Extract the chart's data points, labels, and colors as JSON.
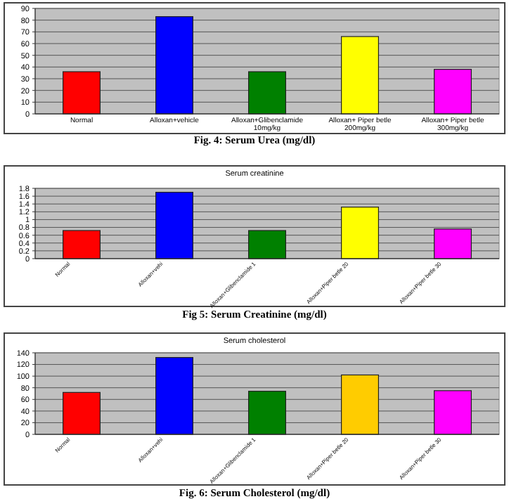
{
  "chart_data": [
    {
      "type": "bar",
      "categories": [
        "Normal",
        "Alloxan+vehicle",
        "Alloxan+Glibenclamide 10mg/kg",
        "Alloxan+ Piper betle 200mg/kg",
        "Alloxan+ Piper betle 300mg/kg"
      ],
      "values": [
        36,
        83,
        36,
        66,
        38
      ],
      "colors": [
        "#ff0000",
        "#0000ff",
        "#008000",
        "#ffff00",
        "#ff00ff"
      ],
      "ylim": [
        0,
        90
      ],
      "yticks": [
        0,
        10,
        20,
        30,
        40,
        50,
        60,
        70,
        80,
        90
      ],
      "grid": "y",
      "annotations": [
        "Fig. 4: Serum Urea (mg/dl)"
      ]
    },
    {
      "type": "bar",
      "title": "Serum creatinine",
      "categories": [
        "Normal",
        "Alloxan+vehi",
        "Alloxan+Glibenclamide 1",
        "Alloxan+Piper betle 20",
        "Alloxan+Piper betle 30"
      ],
      "values": [
        0.72,
        1.7,
        0.72,
        1.32,
        0.76
      ],
      "colors": [
        "#ff0000",
        "#0000ff",
        "#008000",
        "#ffff00",
        "#ff00ff"
      ],
      "ylim": [
        0,
        1.8
      ],
      "yticks": [
        0,
        0.2,
        0.4,
        0.6,
        0.8,
        1,
        1.2,
        1.4,
        1.6,
        1.8
      ],
      "grid": "y",
      "annotations": [
        "Fig 5: Serum Creatinine (mg/dl)"
      ]
    },
    {
      "type": "bar",
      "title": "Serum cholesterol",
      "categories": [
        "Normal",
        "Alloxan+vehi",
        "Alloxan+Glibenclamide 1",
        "Alloxan+Piper betle 20",
        "Alloxan+Piper betle 30"
      ],
      "values": [
        72,
        132,
        74,
        102,
        75
      ],
      "colors": [
        "#ff0000",
        "#0000ff",
        "#008000",
        "#ffcc00",
        "#ff00ff"
      ],
      "ylim": [
        0,
        140
      ],
      "yticks": [
        0,
        20,
        40,
        60,
        80,
        100,
        120,
        140
      ],
      "grid": "y",
      "annotations": [
        "Fig. 6: Serum Cholesterol (mg/dl)"
      ]
    }
  ]
}
